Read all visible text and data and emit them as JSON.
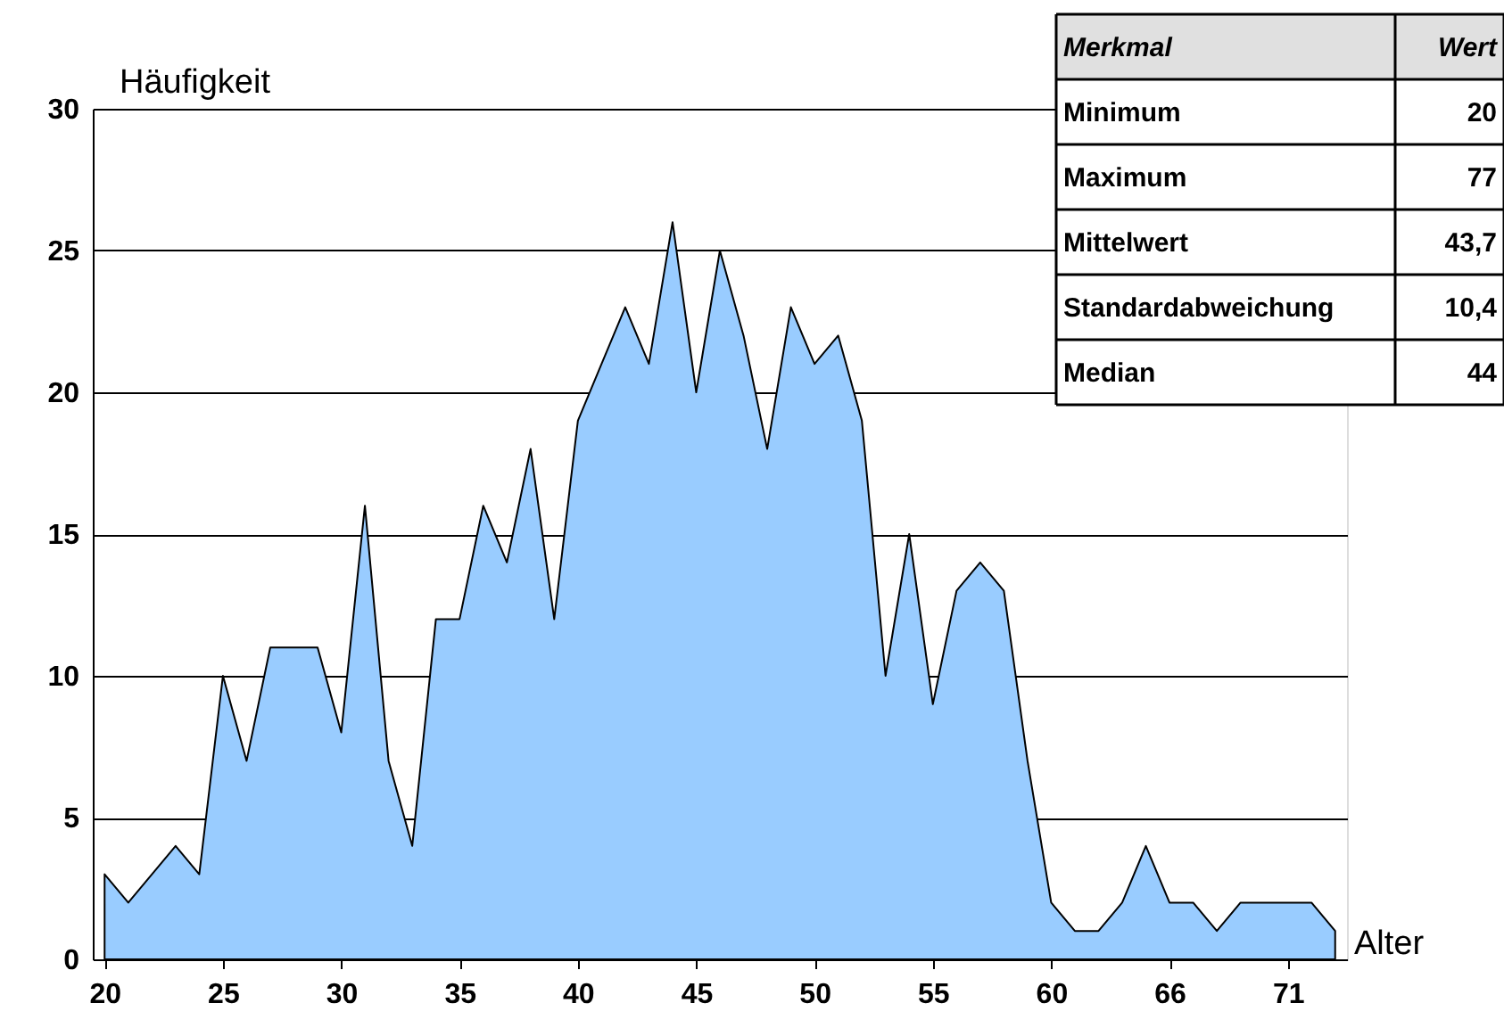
{
  "chart_data": {
    "type": "area",
    "ylabel": "Häufigkeit",
    "xlabel": "Alter",
    "categories": [
      "20",
      null,
      null,
      null,
      null,
      "25",
      null,
      null,
      null,
      null,
      "30",
      null,
      null,
      null,
      null,
      "35",
      null,
      null,
      null,
      null,
      "40",
      null,
      null,
      null,
      null,
      "45",
      null,
      null,
      null,
      null,
      "50",
      null,
      null,
      null,
      null,
      "55",
      null,
      null,
      null,
      null,
      "60",
      null,
      null,
      null,
      null,
      "66",
      null,
      null,
      null,
      null,
      "71",
      null,
      null
    ],
    "series": [
      {
        "color": "#99ccff",
        "values": [
          3,
          2,
          3,
          4,
          3,
          10,
          7,
          11,
          11,
          11,
          8,
          16,
          7,
          4,
          12,
          12,
          16,
          14,
          18,
          12,
          19,
          21,
          23,
          21,
          26,
          20,
          25,
          22,
          18,
          23,
          21,
          22,
          19,
          10,
          15,
          9,
          13,
          14,
          13,
          7,
          2,
          1,
          1,
          2,
          4,
          2,
          2,
          1,
          2,
          2,
          2,
          2,
          1
        ]
      }
    ],
    "ylim": [
      0,
      30
    ],
    "yticks": [
      0,
      5,
      10,
      15,
      20,
      25,
      30
    ],
    "grid": "y",
    "legend": false,
    "annotations": [
      "Merkmal",
      "Wert",
      "Minimum",
      "20",
      "Maximum",
      "77",
      "Mittelwert",
      "43,7",
      "Standardabweichung",
      "10,4",
      "Median",
      "44"
    ]
  }
}
